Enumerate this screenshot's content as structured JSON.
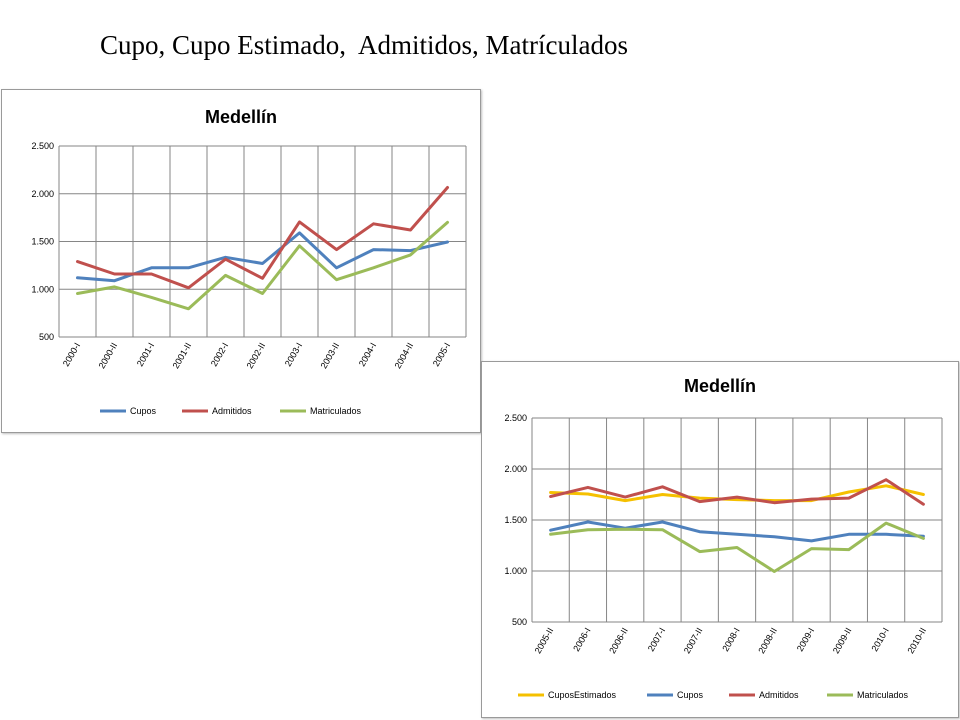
{
  "slide": {
    "title": "Cupo, Cupo Estimado,  Admitidos, Matrículados"
  },
  "chart_data": [
    {
      "type": "line",
      "title": "Medellín",
      "categories": [
        "2000-I",
        "2000-II",
        "2001-I",
        "2001-II",
        "2002-I",
        "2002-II",
        "2003-I",
        "2003-II",
        "2004-I",
        "2004-II",
        "2005-I"
      ],
      "ylim": [
        500,
        2500
      ],
      "yticks": [
        500,
        1000,
        1500,
        2000,
        2500
      ],
      "ytick_labels": [
        "500",
        "1.000",
        "1.500",
        "2.000",
        "2.500"
      ],
      "grid": true,
      "legend_position": "bottom",
      "series": [
        {
          "name": "Cupos",
          "color": "#4f81bd",
          "values": [
            1120,
            1090,
            1225,
            1225,
            1335,
            1270,
            1590,
            1225,
            1415,
            1405,
            1495
          ]
        },
        {
          "name": "Admitidos",
          "color": "#c0504d",
          "values": [
            1290,
            1160,
            1160,
            1015,
            1315,
            1115,
            1705,
            1415,
            1685,
            1620,
            2065
          ]
        },
        {
          "name": "Matriculados",
          "color": "#9bbb59",
          "values": [
            955,
            1025,
            915,
            795,
            1145,
            955,
            1455,
            1100,
            1225,
            1360,
            1700
          ]
        }
      ]
    },
    {
      "type": "line",
      "title": "Medellín",
      "categories": [
        "2005-II",
        "2006-I",
        "2006-II",
        "2007-I",
        "2007-II",
        "2008-I",
        "2008-II",
        "2009-I",
        "2009-II",
        "2010-I",
        "2010-II"
      ],
      "ylim": [
        500,
        2500
      ],
      "yticks": [
        500,
        1000,
        1500,
        2000,
        2500
      ],
      "ytick_labels": [
        "500",
        "1.000",
        "1.500",
        "2.000",
        "2.500"
      ],
      "grid": true,
      "legend_position": "bottom",
      "series": [
        {
          "name": "CuposEstimados",
          "color": "#f5c000",
          "values": [
            1770,
            1755,
            1690,
            1750,
            1715,
            1700,
            1690,
            1690,
            1775,
            1835,
            1750
          ]
        },
        {
          "name": "Cupos",
          "color": "#4f81bd",
          "values": [
            1400,
            1480,
            1420,
            1480,
            1385,
            1360,
            1335,
            1295,
            1360,
            1360,
            1340
          ]
        },
        {
          "name": "Admitidos",
          "color": "#c0504d",
          "values": [
            1730,
            1820,
            1725,
            1825,
            1680,
            1725,
            1670,
            1705,
            1715,
            1895,
            1655
          ]
        },
        {
          "name": "Matriculados",
          "color": "#9bbb59",
          "values": [
            1360,
            1405,
            1410,
            1405,
            1190,
            1230,
            995,
            1220,
            1210,
            1470,
            1320
          ]
        }
      ]
    }
  ]
}
